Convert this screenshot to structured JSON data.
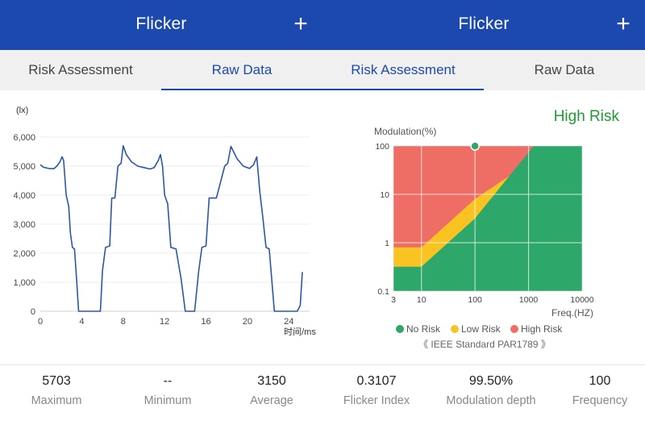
{
  "left_panel": {
    "app_title": "Flicker",
    "add_icon": "plus-icon",
    "tabs": [
      {
        "label": "Risk Assessment",
        "active": false
      },
      {
        "label": "Raw Data",
        "active": true
      }
    ]
  },
  "right_panel": {
    "app_title": "Flicker",
    "add_icon": "plus-icon",
    "tabs": [
      {
        "label": "Risk Assessment",
        "active": true
      },
      {
        "label": "Raw Data",
        "active": false
      }
    ]
  },
  "colors": {
    "brand": "#1c49ad",
    "high_risk": "#ee6e66",
    "low_risk": "#f9c421",
    "no_risk": "#2ea86a",
    "high_risk_text": "#1f9a35",
    "waveform": "#2e56a8"
  },
  "chart_data": [
    {
      "type": "line",
      "title": "",
      "ylabel": "(lx)",
      "xlabel": "时间/ms",
      "xlim": [
        0,
        26
      ],
      "ylim": [
        0,
        6000
      ],
      "xticks": [
        "0",
        "4",
        "8",
        "12",
        "16",
        "20",
        "24"
      ],
      "yticks": [
        "0",
        "1,000",
        "2,000",
        "3,000",
        "4,000",
        "5,000",
        "6,000"
      ],
      "grid": true,
      "series": [
        {
          "x": [
            0,
            0.3,
            0.8,
            1.3,
            1.6,
            1.9,
            2.1,
            2.25,
            2.5,
            2.75,
            2.9,
            3.1,
            3.3,
            3.5,
            3.7,
            4.0,
            5.2,
            5.8,
            6.0,
            6.3,
            6.7,
            6.9,
            7.2,
            7.5,
            7.8,
            8.0,
            8.3,
            8.8,
            9.4,
            10.0,
            10.6,
            11.0,
            11.4,
            11.6,
            11.8,
            12.0,
            12.3,
            12.6,
            13.1,
            13.6,
            14.0,
            14.3,
            14.5,
            14.9,
            15.3,
            15.6,
            16.0,
            16.3,
            17.0,
            17.8,
            18.1,
            18.4,
            19.0,
            19.6,
            20.2,
            20.6,
            20.9,
            21.2,
            21.4,
            21.8,
            22.1,
            22.6,
            23.0,
            23.3,
            23.7,
            24.0,
            24.2,
            24.8,
            25.1,
            25.3
          ],
          "y": [
            5050,
            4960,
            4920,
            4910,
            5000,
            5150,
            5320,
            5200,
            4000,
            3600,
            2700,
            2200,
            2150,
            1100,
            0,
            0,
            0,
            0,
            1400,
            2200,
            2250,
            3900,
            3900,
            5000,
            5100,
            5700,
            5400,
            5150,
            5000,
            4950,
            4900,
            4950,
            5200,
            5400,
            5000,
            4000,
            3700,
            2200,
            2150,
            1100,
            0,
            0,
            0,
            0,
            1400,
            2200,
            2250,
            3900,
            3900,
            5000,
            5100,
            5680,
            5250,
            5000,
            4920,
            5050,
            5320,
            4100,
            3500,
            2200,
            2150,
            0,
            0,
            0,
            0,
            0,
            0,
            0,
            200,
            1350
          ]
        }
      ]
    },
    {
      "type": "area",
      "title": "High Risk",
      "ylabel": "Modulation(%)",
      "xlabel": "Freq.(HZ)",
      "xscale": "log",
      "yscale": "log",
      "xlim": [
        3,
        10000
      ],
      "ylim": [
        0.1,
        100
      ],
      "xticks": [
        "3",
        "10",
        "100",
        "1000",
        "10000"
      ],
      "yticks": [
        "0.1",
        "1",
        "10",
        "100"
      ],
      "grid": true,
      "legend": "bottom",
      "series": [
        {
          "name": "No Risk",
          "color": "#2ea86a"
        },
        {
          "name": "Low Risk",
          "color": "#f9c421"
        },
        {
          "name": "High Risk",
          "color": "#ee6e66"
        }
      ],
      "boundaries": {
        "low_risk_upper": {
          "x": [
            3,
            10,
            100,
            3000
          ],
          "y": [
            0.8,
            0.8,
            8,
            100
          ]
        },
        "no_risk_upper": {
          "x": [
            3,
            10,
            100,
            1250
          ],
          "y": [
            0.32,
            0.32,
            3.2,
            100
          ]
        }
      },
      "measurement": {
        "x": 100,
        "y": 99.5
      },
      "footnote": "《 IEEE Standard PAR1789 》"
    }
  ],
  "stats": [
    {
      "value": "5703",
      "label": "Maximum"
    },
    {
      "value": "--",
      "label": "Minimum"
    },
    {
      "value": "3150",
      "label": "Average"
    },
    {
      "value": "0.3107",
      "label": "Flicker Index"
    },
    {
      "value": "99.50%",
      "label": "Modulation depth"
    },
    {
      "value": "100",
      "label": "Frequency"
    }
  ]
}
